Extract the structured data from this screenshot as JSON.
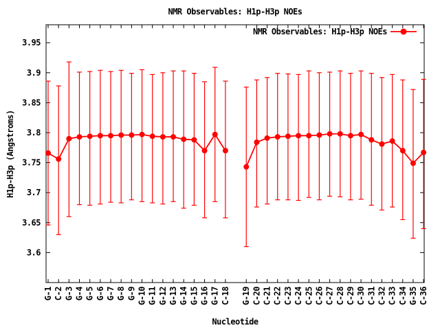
{
  "chart_data": {
    "type": "line",
    "title": "NMR Observables: H1p-H3p NOEs",
    "legend_label": "NMR Observables: H1p-H3p NOEs",
    "legend_position": "top-right-inside",
    "xlabel": "Nucleotide",
    "ylabel": "H1p-H3p (Angstroms)",
    "marker": "filled-circle",
    "error_bars": "y-errorbars-with-caps",
    "grid": "off",
    "ylim": [
      3.55,
      3.98
    ],
    "ytick_labels": [
      "3.6",
      "3.65",
      "3.7",
      "3.75",
      "3.8",
      "3.85",
      "3.9",
      "3.95"
    ],
    "ytick_values": [
      3.6,
      3.65,
      3.7,
      3.75,
      3.8,
      3.85,
      3.9,
      3.95
    ],
    "strand_break_after": "C-18",
    "colors": {
      "series": "#ff0000",
      "foreground": "#000000",
      "background": "#ffffff"
    },
    "categories": [
      "G-1",
      "C-2",
      "G-3",
      "G-4",
      "G-5",
      "G-6",
      "G-7",
      "G-8",
      "G-9",
      "G-10",
      "G-11",
      "G-12",
      "G-13",
      "G-14",
      "G-15",
      "G-16",
      "G-17",
      "C-18",
      "G-19",
      "C-20",
      "C-21",
      "C-22",
      "C-23",
      "C-24",
      "C-25",
      "C-26",
      "C-27",
      "C-28",
      "C-29",
      "C-30",
      "C-31",
      "C-32",
      "C-33",
      "C-34",
      "G-35",
      "C-36"
    ],
    "values": [
      3.766,
      3.756,
      3.79,
      3.793,
      3.794,
      3.795,
      3.795,
      3.796,
      3.796,
      3.797,
      3.794,
      3.793,
      3.793,
      3.789,
      3.788,
      3.77,
      3.797,
      3.77,
      3.743,
      3.784,
      3.791,
      3.793,
      3.794,
      3.795,
      3.795,
      3.796,
      3.798,
      3.798,
      3.795,
      3.797,
      3.788,
      3.781,
      3.786,
      3.77,
      3.749,
      3.767
    ],
    "err_low": [
      3.646,
      3.63,
      3.66,
      3.68,
      3.679,
      3.681,
      3.684,
      3.683,
      3.688,
      3.685,
      3.683,
      3.681,
      3.685,
      3.674,
      3.679,
      3.658,
      3.685,
      3.658,
      3.61,
      3.676,
      3.681,
      3.688,
      3.688,
      3.687,
      3.692,
      3.688,
      3.694,
      3.693,
      3.688,
      3.689,
      3.679,
      3.671,
      3.676,
      3.655,
      3.624,
      3.64
    ],
    "err_high": [
      3.886,
      3.878,
      3.918,
      3.901,
      3.902,
      3.904,
      3.902,
      3.904,
      3.899,
      3.905,
      3.897,
      3.9,
      3.903,
      3.903,
      3.899,
      3.885,
      3.909,
      3.886,
      3.876,
      3.888,
      3.892,
      3.899,
      3.898,
      3.897,
      3.903,
      3.9,
      3.901,
      3.903,
      3.899,
      3.903,
      3.899,
      3.892,
      3.897,
      3.888,
      3.872,
      3.889
    ]
  }
}
